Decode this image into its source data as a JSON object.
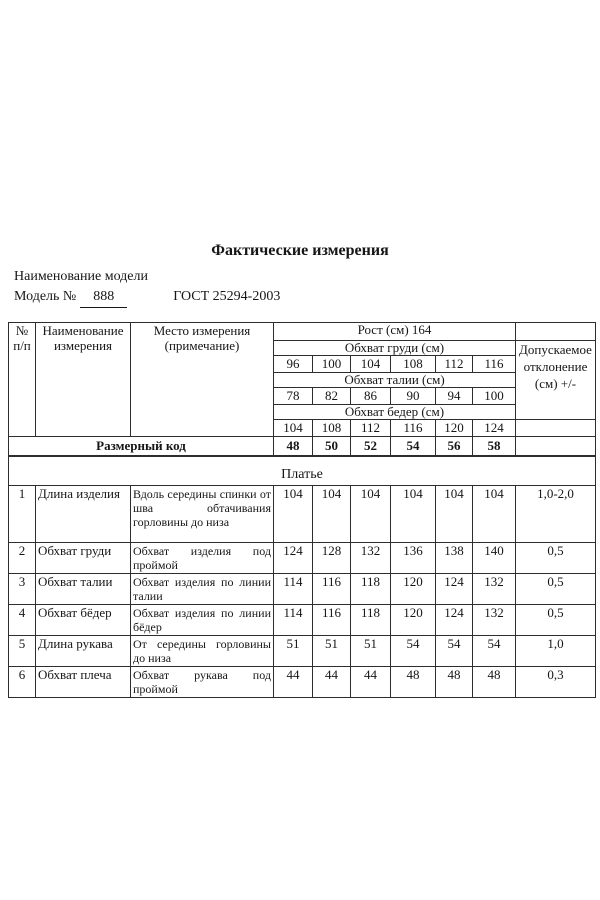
{
  "page": {
    "title": "Фактические измерения",
    "model_name_label": "Наименование модели",
    "model_label": "Модель №",
    "model_number": "888",
    "gost": "ГОСТ 25294-2003"
  },
  "table": {
    "header": {
      "num": "№ п/п",
      "name": "Наименование измерения",
      "place": "Место измерения (примечание)",
      "rost": "Рост (см) 164",
      "chest_label": "Обхват груди (см)",
      "chest_values": [
        "96",
        "100",
        "104",
        "108",
        "112",
        "116"
      ],
      "waist_label": "Обхват талии (см)",
      "waist_values": [
        "78",
        "82",
        "86",
        "90",
        "94",
        "100"
      ],
      "hips_label": "Обхват бедер (см)",
      "hips_values": [
        "104",
        "108",
        "112",
        "116",
        "120",
        "124"
      ],
      "tolerance_label": "Допускаемое отклонение (см) +/-",
      "size_code_label": "Размерный код",
      "size_code_values": [
        "48",
        "50",
        "52",
        "54",
        "56",
        "58"
      ]
    },
    "section_title": "Платье",
    "rows": [
      {
        "num": "1",
        "name": "Длина изделия",
        "place": "Вдоль середины спинки от шва обтачивания горловины до низа",
        "values": [
          "104",
          "104",
          "104",
          "104",
          "104",
          "104"
        ],
        "tolerance": "1,0-2,0"
      },
      {
        "num": "2",
        "name": "Обхват груди",
        "place": "Обхват изделия под проймой",
        "values": [
          "124",
          "128",
          "132",
          "136",
          "138",
          "140"
        ],
        "tolerance": "0,5"
      },
      {
        "num": "3",
        "name": "Обхват талии",
        "place": "Обхват изделия по линии талии",
        "values": [
          "114",
          "116",
          "118",
          "120",
          "124",
          "132"
        ],
        "tolerance": "0,5"
      },
      {
        "num": "4",
        "name": "Обхват бёдер",
        "place": "Обхват изделия по линии бёдер",
        "values": [
          "114",
          "116",
          "118",
          "120",
          "124",
          "132"
        ],
        "tolerance": "0,5"
      },
      {
        "num": "5",
        "name": "Длина рукава",
        "place": "От середины горловины до низа",
        "values": [
          "51",
          "51",
          "51",
          "54",
          "54",
          "54"
        ],
        "tolerance": "1,0"
      },
      {
        "num": "6",
        "name": "Обхват плеча",
        "place": "Обхват рукава под проймой",
        "values": [
          "44",
          "44",
          "44",
          "48",
          "48",
          "48"
        ],
        "tolerance": "0,3"
      }
    ]
  }
}
